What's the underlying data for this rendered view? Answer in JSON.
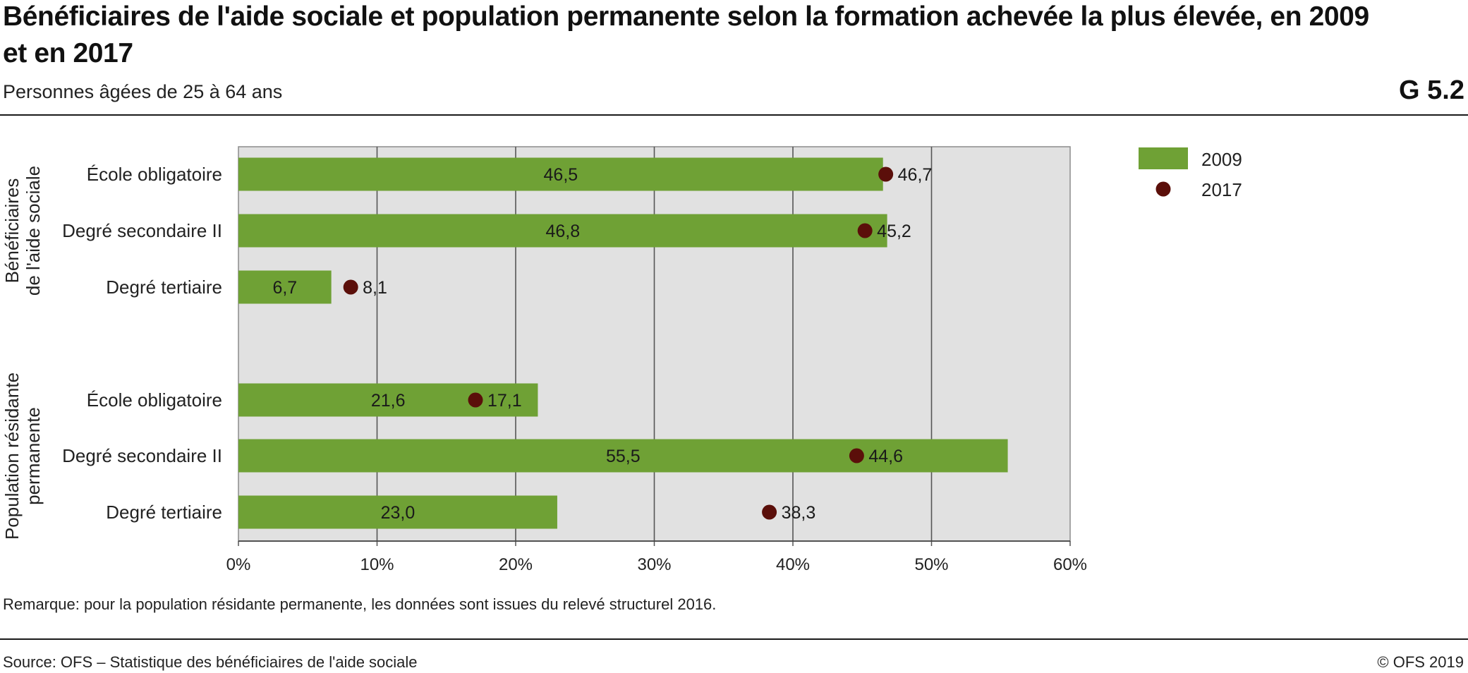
{
  "header": {
    "title": "Bénéficiaires de l'aide sociale et population permanente selon la formation achevée la plus élevée, en 2009 et en 2017",
    "subtitle": "Personnes âgées de 25 à 64 ans",
    "code": "G 5.2"
  },
  "footer": {
    "note": "Remarque: pour la population résidante permanente, les données sont issues du relevé structurel 2016.",
    "source": "Source: OFS – Statistique des bénéficiaires de l'aide sociale",
    "copyright": "© OFS 2019"
  },
  "chart_data": {
    "type": "bar",
    "orientation": "horizontal",
    "groups": [
      {
        "name": "Bénéficiaires de l'aide sociale",
        "categories": [
          "École obligatoire",
          "Degré secondaire II",
          "Degré tertiaire"
        ]
      },
      {
        "name": "Population résidante permanente",
        "categories": [
          "École obligatoire",
          "Degré secondaire II",
          "Degré tertiaire"
        ]
      }
    ],
    "series": [
      {
        "name": "2009",
        "mark": "bar",
        "color": "#6fa135",
        "values": [
          46.5,
          46.8,
          6.7,
          21.6,
          55.5,
          23.0
        ],
        "labels": [
          "46,5",
          "46,8",
          "6,7",
          "21,6",
          "55,5",
          "23,0"
        ]
      },
      {
        "name": "2017",
        "mark": "dot",
        "color": "#5b0f0a",
        "values": [
          46.7,
          45.2,
          8.1,
          17.1,
          44.6,
          38.3
        ],
        "labels": [
          "46,7",
          "45,2",
          "8,1",
          "17,1",
          "44,6",
          "38,3"
        ]
      }
    ],
    "xlim": [
      0,
      60
    ],
    "xticks": [
      0,
      10,
      20,
      30,
      40,
      50,
      60
    ],
    "xtick_labels": [
      "0%",
      "10%",
      "20%",
      "30%",
      "40%",
      "50%",
      "60%"
    ],
    "grid": true,
    "legend": "top-right",
    "colors": {
      "plot_background": "#e1e1e1",
      "gridline": "#555555"
    }
  }
}
